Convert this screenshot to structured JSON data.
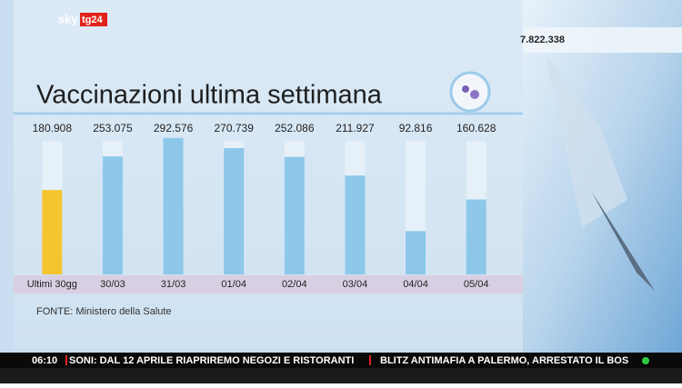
{
  "overlay": {
    "logo_sky": "sky",
    "logo_tg": "tg24",
    "counter": "7.822.338",
    "source": "FONTE: Ministero della Salute",
    "clock": "06:10",
    "ticker": [
      "SONI: DAL 12 APRILE RIAPRIREMO NEGOZI E RISTORANTI",
      "BLITZ ANTIMAFIA A PALERMO, ARRESTATO IL BOS"
    ]
  },
  "chart_data": {
    "type": "bar",
    "title": "Vaccinazioni ultima settimana",
    "categories": [
      "Ultimi 30gg",
      "30/03",
      "31/03",
      "01/04",
      "02/04",
      "03/04",
      "04/04",
      "05/04"
    ],
    "values": [
      180908,
      253075,
      292576,
      270739,
      252086,
      211927,
      92816,
      160628
    ],
    "value_labels": [
      "180.908",
      "253.075",
      "292.576",
      "270.739",
      "252.086",
      "211.927",
      "92.816",
      "160.628"
    ],
    "colors": [
      "#f4c531",
      "#8dc8ea",
      "#8dc8ea",
      "#8dc8ea",
      "#8dc8ea",
      "#8dc8ea",
      "#8dc8ea",
      "#8dc8ea"
    ],
    "ylim": [
      0,
      300000
    ]
  }
}
